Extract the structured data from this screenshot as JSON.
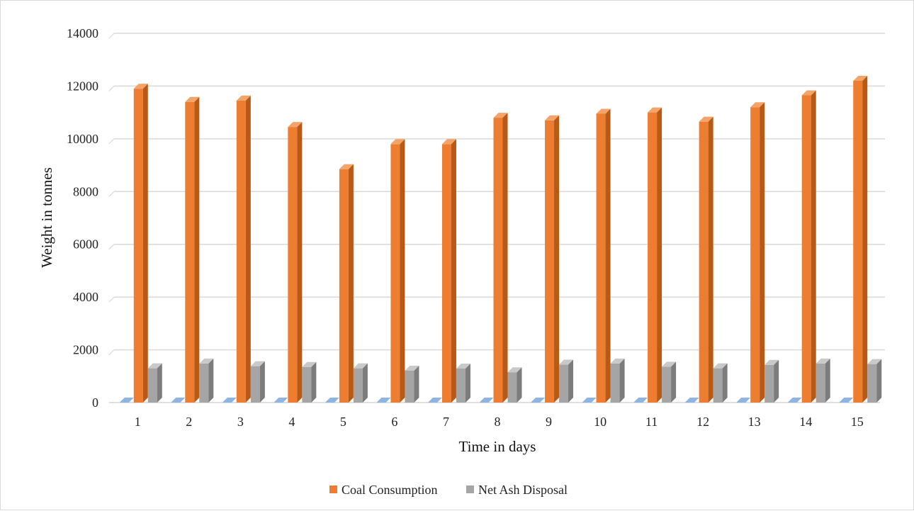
{
  "chart_data": {
    "type": "bar",
    "title": "",
    "xlabel": "Time in days",
    "ylabel": "Weight in tonnes",
    "categories": [
      "1",
      "2",
      "3",
      "4",
      "5",
      "6",
      "7",
      "8",
      "9",
      "10",
      "11",
      "12",
      "13",
      "14",
      "15"
    ],
    "ylim": [
      0,
      14000
    ],
    "yticks": [
      0,
      2000,
      4000,
      6000,
      8000,
      10000,
      12000,
      14000
    ],
    "grid": true,
    "legend_position": "bottom",
    "series": [
      {
        "values": [
          0,
          0,
          0,
          0,
          0,
          0,
          0,
          0,
          0,
          0,
          0,
          0,
          0,
          0,
          0
        ],
        "color": "#4472C4",
        "front": "#5B9BD5",
        "side": "#2E5C8A",
        "top": "#8DB4E2"
      },
      {
        "name": "Coal Consumption",
        "values": [
          11900,
          11400,
          11450,
          10450,
          8850,
          9800,
          9800,
          10800,
          10700,
          10950,
          11000,
          10650,
          11200,
          11650,
          12200
        ],
        "color": "#ED7D31",
        "front": "#ED7D31",
        "side": "#B85A16",
        "top": "#F4A469"
      },
      {
        "name": "Net Ash Disposal",
        "values": [
          1300,
          1480,
          1380,
          1350,
          1300,
          1210,
          1290,
          1150,
          1440,
          1480,
          1360,
          1300,
          1430,
          1480,
          1460
        ],
        "color": "#A5A5A5",
        "front": "#A5A5A5",
        "side": "#7C7C7C",
        "top": "#C9C9C9"
      }
    ]
  }
}
